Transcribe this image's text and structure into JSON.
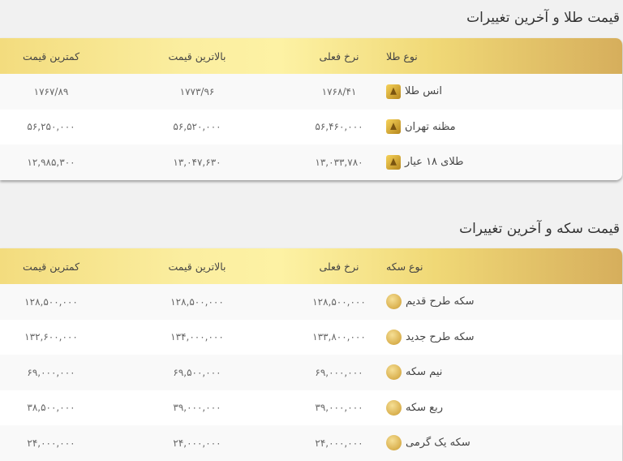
{
  "gold": {
    "title": "قیمت طلا و آخرین تغییرات",
    "headers": [
      "نوع طلا",
      "نرخ فعلی",
      "بالاترین قیمت",
      "کمترین قیمت"
    ],
    "rows": [
      {
        "name": "انس طلا",
        "current": "۱۷۶۸/۴۱",
        "high": "۱۷۷۳/۹۶",
        "low": "۱۷۶۷/۸۹",
        "icon": "gold-bar-icon"
      },
      {
        "name": "مظنه تهران",
        "current": "۵۶,۴۶۰,۰۰۰",
        "high": "۵۶,۵۲۰,۰۰۰",
        "low": "۵۶,۲۵۰,۰۰۰",
        "icon": "gold-bar-icon"
      },
      {
        "name": "طلای ۱۸ عیار",
        "current": "۱۳,۰۳۳,۷۸۰",
        "high": "۱۳,۰۴۷,۶۳۰",
        "low": "۱۲,۹۸۵,۳۰۰",
        "icon": "gold-bar-icon"
      }
    ]
  },
  "coin": {
    "title": "قیمت سکه و آخرین تغییرات",
    "headers": [
      "نوع سکه",
      "نرخ فعلی",
      "بالاترین قیمت",
      "کمترین قیمت"
    ],
    "rows": [
      {
        "name": "سکه طرح قدیم",
        "current": "۱۲۸,۵۰۰,۰۰۰",
        "high": "۱۲۸,۵۰۰,۰۰۰",
        "low": "۱۲۸,۵۰۰,۰۰۰",
        "icon": "gold-coin-icon"
      },
      {
        "name": "سکه طرح جدید",
        "current": "۱۳۳,۸۰۰,۰۰۰",
        "high": "۱۳۴,۰۰۰,۰۰۰",
        "low": "۱۳۲,۶۰۰,۰۰۰",
        "icon": "gold-coin-icon"
      },
      {
        "name": "نیم سکه",
        "current": "۶۹,۰۰۰,۰۰۰",
        "high": "۶۹,۵۰۰,۰۰۰",
        "low": "۶۹,۰۰۰,۰۰۰",
        "icon": "gold-coin-icon"
      },
      {
        "name": "ربع سکه",
        "current": "۳۹,۰۰۰,۰۰۰",
        "high": "۳۹,۰۰۰,۰۰۰",
        "low": "۳۸,۵۰۰,۰۰۰",
        "icon": "gold-coin-icon"
      },
      {
        "name": "سکه یک گرمی",
        "current": "۲۴,۰۰۰,۰۰۰",
        "high": "۲۴,۰۰۰,۰۰۰",
        "low": "۲۴,۰۰۰,۰۰۰",
        "icon": "gold-coin-icon"
      }
    ]
  },
  "colors": {
    "header_gradient_light": "#fdf2a4",
    "header_gradient_dark": "#d6ae5c"
  }
}
